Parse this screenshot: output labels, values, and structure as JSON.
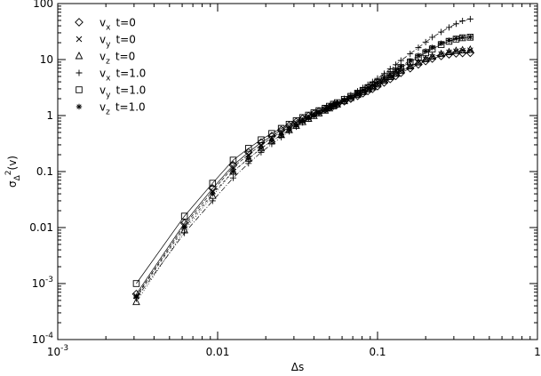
{
  "chart_data": {
    "type": "scatter",
    "xscale": "log",
    "yscale": "log",
    "xlim": [
      0.001,
      1
    ],
    "ylim": [
      0.0001,
      100
    ],
    "xlabel": "Δs",
    "ylabel": "σΔ²(v)",
    "x_ticks": [
      {
        "value": 0.001,
        "base": "10",
        "exp": "-3"
      },
      {
        "value": 0.01,
        "label": "0.01"
      },
      {
        "value": 0.1,
        "label": "0.1"
      },
      {
        "value": 1,
        "label": "1"
      }
    ],
    "y_ticks": [
      {
        "value": 0.0001,
        "base": "10",
        "exp": "-4"
      },
      {
        "value": 0.001,
        "base": "10",
        "exp": "-3"
      },
      {
        "value": 0.01,
        "label": "0.01"
      },
      {
        "value": 0.1,
        "label": "0.1"
      },
      {
        "value": 1,
        "label": "1"
      },
      {
        "value": 10,
        "label": "10"
      },
      {
        "value": 100,
        "label": "100"
      }
    ],
    "legend_position": "top-left",
    "series": [
      {
        "var": "v",
        "sub": "x",
        "time": "t=0",
        "marker": "diamond",
        "dash": "none",
        "x": [
          0.0031,
          0.0062,
          0.0093,
          0.0125,
          0.0156,
          0.0187,
          0.0218,
          0.025,
          0.028,
          0.031,
          0.034,
          0.037,
          0.04,
          0.043,
          0.047,
          0.05,
          0.053,
          0.056,
          0.062,
          0.068,
          0.075,
          0.081,
          0.087,
          0.093,
          0.1,
          0.11,
          0.12,
          0.13,
          0.14,
          0.16,
          0.18,
          0.2,
          0.22,
          0.25,
          0.28,
          0.31,
          0.34,
          0.38
        ],
        "y": [
          0.00065,
          0.012,
          0.05,
          0.13,
          0.22,
          0.33,
          0.43,
          0.55,
          0.66,
          0.77,
          0.88,
          0.98,
          1.08,
          1.18,
          1.3,
          1.4,
          1.5,
          1.6,
          1.8,
          2.0,
          2.25,
          2.5,
          2.75,
          3.0,
          3.35,
          3.9,
          4.5,
          5.1,
          5.8,
          7.0,
          8.2,
          9.4,
          10.4,
          11.6,
          12.4,
          12.9,
          13.1,
          13.2
        ]
      },
      {
        "var": "v",
        "sub": "y",
        "time": "t=0",
        "marker": "cross",
        "dash": "4,2",
        "x": [
          0.0031,
          0.0062,
          0.0093,
          0.0125,
          0.0156,
          0.0187,
          0.0218,
          0.025,
          0.028,
          0.031,
          0.034,
          0.037,
          0.04,
          0.043,
          0.047,
          0.05,
          0.053,
          0.056,
          0.062,
          0.068,
          0.075,
          0.081,
          0.087,
          0.093,
          0.1,
          0.11,
          0.12,
          0.13,
          0.14,
          0.16,
          0.18,
          0.2,
          0.22,
          0.25,
          0.28,
          0.31,
          0.34,
          0.38
        ],
        "y": [
          0.0006,
          0.011,
          0.045,
          0.12,
          0.2,
          0.3,
          0.4,
          0.51,
          0.62,
          0.73,
          0.84,
          0.95,
          1.06,
          1.16,
          1.29,
          1.4,
          1.52,
          1.63,
          1.85,
          2.08,
          2.35,
          2.62,
          2.9,
          3.18,
          3.55,
          4.15,
          4.8,
          5.5,
          6.2,
          7.5,
          8.8,
          10.1,
          11.2,
          12.5,
          13.4,
          14.0,
          14.4,
          14.6
        ]
      },
      {
        "var": "v",
        "sub": "z",
        "time": "t=0",
        "marker": "triangle",
        "dash": "1,2",
        "x": [
          0.0031,
          0.0062,
          0.0093,
          0.0125,
          0.0156,
          0.0187,
          0.0218,
          0.025,
          0.028,
          0.031,
          0.034,
          0.037,
          0.04,
          0.043,
          0.047,
          0.05,
          0.053,
          0.056,
          0.062,
          0.068,
          0.075,
          0.081,
          0.087,
          0.093,
          0.1,
          0.11,
          0.12,
          0.13,
          0.14,
          0.16,
          0.18,
          0.2,
          0.22,
          0.25,
          0.28,
          0.31,
          0.34,
          0.38
        ],
        "y": [
          0.00047,
          0.009,
          0.037,
          0.1,
          0.17,
          0.26,
          0.35,
          0.45,
          0.55,
          0.66,
          0.77,
          0.88,
          0.99,
          1.1,
          1.23,
          1.35,
          1.47,
          1.58,
          1.82,
          2.06,
          2.35,
          2.64,
          2.93,
          3.22,
          3.6,
          4.2,
          4.9,
          5.6,
          6.3,
          7.6,
          8.9,
          10.2,
          11.3,
          12.6,
          13.6,
          14.3,
          14.7,
          15.0
        ]
      },
      {
        "var": "v",
        "sub": "x",
        "time": "t=1.0",
        "marker": "plus",
        "dash": "6,2,1,2",
        "x": [
          0.0031,
          0.0062,
          0.0093,
          0.0125,
          0.0156,
          0.0187,
          0.0218,
          0.025,
          0.028,
          0.031,
          0.034,
          0.037,
          0.04,
          0.043,
          0.047,
          0.05,
          0.053,
          0.056,
          0.062,
          0.068,
          0.075,
          0.081,
          0.087,
          0.093,
          0.1,
          0.11,
          0.12,
          0.13,
          0.14,
          0.16,
          0.18,
          0.2,
          0.22,
          0.25,
          0.28,
          0.31,
          0.34,
          0.38
        ],
        "y": [
          0.00055,
          0.008,
          0.03,
          0.077,
          0.14,
          0.22,
          0.31,
          0.41,
          0.52,
          0.63,
          0.75,
          0.87,
          0.99,
          1.11,
          1.26,
          1.4,
          1.55,
          1.7,
          2.0,
          2.32,
          2.72,
          3.13,
          3.56,
          4.0,
          4.6,
          5.6,
          6.8,
          8.1,
          9.6,
          12.7,
          16.3,
          20.5,
          25.0,
          31.0,
          37.5,
          43.5,
          49.0,
          53.0
        ]
      },
      {
        "var": "v",
        "sub": "y",
        "time": "t=1.0",
        "marker": "square",
        "dash": "none",
        "x": [
          0.0031,
          0.0062,
          0.0093,
          0.0125,
          0.0156,
          0.0187,
          0.0218,
          0.025,
          0.028,
          0.031,
          0.034,
          0.037,
          0.04,
          0.043,
          0.047,
          0.05,
          0.053,
          0.056,
          0.062,
          0.068,
          0.075,
          0.081,
          0.087,
          0.093,
          0.1,
          0.11,
          0.12,
          0.13,
          0.14,
          0.16,
          0.18,
          0.2,
          0.22,
          0.25,
          0.28,
          0.31,
          0.34,
          0.38
        ],
        "y": [
          0.001,
          0.016,
          0.062,
          0.16,
          0.26,
          0.37,
          0.48,
          0.59,
          0.7,
          0.81,
          0.92,
          1.02,
          1.12,
          1.22,
          1.35,
          1.47,
          1.59,
          1.7,
          1.95,
          2.2,
          2.5,
          2.82,
          3.14,
          3.46,
          3.9,
          4.6,
          5.4,
          6.3,
          7.2,
          9.0,
          11.0,
          13.2,
          15.4,
          18.5,
          21.2,
          23.2,
          24.5,
          25.0
        ]
      },
      {
        "var": "v",
        "sub": "z",
        "time": "t=1.0",
        "marker": "star",
        "dash": "3,3",
        "x": [
          0.0031,
          0.0062,
          0.0093,
          0.0125,
          0.0156,
          0.0187,
          0.0218,
          0.025,
          0.028,
          0.031,
          0.034,
          0.037,
          0.04,
          0.043,
          0.047,
          0.05,
          0.053,
          0.056,
          0.062,
          0.068,
          0.075,
          0.081,
          0.087,
          0.093,
          0.1,
          0.11,
          0.12,
          0.13,
          0.14,
          0.16,
          0.18,
          0.2,
          0.22,
          0.25,
          0.28,
          0.31,
          0.34,
          0.38
        ],
        "y": [
          0.00058,
          0.01,
          0.04,
          0.1,
          0.17,
          0.26,
          0.35,
          0.45,
          0.56,
          0.67,
          0.78,
          0.89,
          1.0,
          1.11,
          1.24,
          1.36,
          1.49,
          1.62,
          1.88,
          2.15,
          2.48,
          2.82,
          3.17,
          3.52,
          4.0,
          4.75,
          5.6,
          6.55,
          7.6,
          9.6,
          11.8,
          14.2,
          16.5,
          19.5,
          22.0,
          23.8,
          24.8,
          25.2
        ]
      }
    ]
  }
}
